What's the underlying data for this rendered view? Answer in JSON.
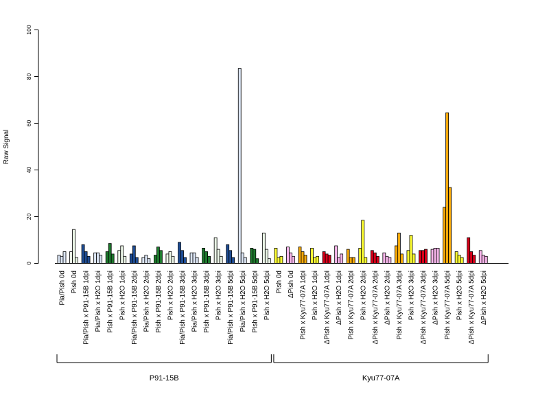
{
  "chart_data": {
    "type": "bar",
    "ylabel": "Raw Signal",
    "ylim": [
      0,
      100
    ],
    "yticks": [
      0,
      20,
      40,
      60,
      80,
      100
    ],
    "categories": [
      "Pia/Pish 0d",
      "Pish 0d",
      "Pia/Pish x P91-15B 1dpi",
      "Pia/Pish x H2O 1dpi",
      "Pish x P91-15B 1dpi",
      "Pish x H2O 1dpi",
      "Pia/Pish x P91-15B 2dpi",
      "Pia/Pish x H2O 2dpi",
      "Pish x P91-15B 2dpi",
      "Pish x H2O 2dpi",
      "Pia/Pish x P91-15B 3dpi",
      "Pia/Pish x H2O 3dpi",
      "Pish x P91-15B 3dpi",
      "Pish x H2O 3dpi",
      "Pia/Pish x P91-15B 5dpi",
      "Pia/Pish x H2O 5dpi",
      "Pish x P91-15B 5dpi",
      "Pish x H2O 5dpi",
      "Pish 0d",
      "ΔPish 0d",
      "Pish x Kyu77-07A 1dpi",
      "Pish x H2O 1dpi",
      "ΔPish x Kyu77-07A 1dpi",
      "ΔPish x H2O 1dpi",
      "Pish x Kyu77-07A 2dpi",
      "Pish x H2O 2dpi",
      "ΔPish x Kyu77-07A 2dpi",
      "ΔPish x H2O 2dpi",
      "Pish x Kyu77-07A 3dpi",
      "Pish x H2O 3dpi",
      "ΔPish x Kyu77-07A 3dpi",
      "ΔPish x H2O 3dpi",
      "Pish x Kyu77-07A 5dpi",
      "Pish x H2O 5dpi",
      "ΔPish x Kyu77-07A 5dpi",
      "ΔPish x H2O 5dpi"
    ],
    "colors": [
      "#dbe5f5",
      "#eaf5e6",
      "#1f4e96",
      "#dbe5f5",
      "#1e7a2e",
      "#eaf5e6",
      "#1f4e96",
      "#dbe5f5",
      "#1e7a2e",
      "#eaf5e6",
      "#1f4e96",
      "#dbe5f5",
      "#1e7a2e",
      "#eaf5e6",
      "#1f4e96",
      "#dbe5f5",
      "#1e7a2e",
      "#eaf5e6",
      "#ffff33",
      "#f7b5ea",
      "#f5a80a",
      "#ffff33",
      "#d8001a",
      "#f7b5ea",
      "#f5a80a",
      "#ffff33",
      "#d8001a",
      "#f7b5ea",
      "#f5a80a",
      "#ffff33",
      "#d8001a",
      "#f7b5ea",
      "#f5a80a",
      "#ffff33",
      "#d8001a",
      "#f7b5ea"
    ],
    "values": [
      [
        3.5,
        3.0,
        5.0
      ],
      [
        5.0,
        14.5,
        2.5
      ],
      [
        8.0,
        5.0,
        3.0
      ],
      [
        4.5,
        4.5,
        3.5
      ],
      [
        5.0,
        8.5,
        4.0
      ],
      [
        5.5,
        7.5,
        3.0
      ],
      [
        4.0,
        7.5,
        2.5
      ],
      [
        2.5,
        3.5,
        2.0
      ],
      [
        3.5,
        7.0,
        5.5
      ],
      [
        4.0,
        5.0,
        3.0
      ],
      [
        9.0,
        5.5,
        2.5
      ],
      [
        4.5,
        4.5,
        2.5
      ],
      [
        6.5,
        5.0,
        3.0
      ],
      [
        11.0,
        6.0,
        3.0
      ],
      [
        8.0,
        5.5,
        2.5
      ],
      [
        83.5,
        4.5,
        2.5
      ],
      [
        6.5,
        6.0,
        2.0
      ],
      [
        13.0,
        6.0,
        2.0
      ],
      [
        6.5,
        2.5,
        3.0
      ],
      [
        7.0,
        4.5,
        3.0
      ],
      [
        7.0,
        5.0,
        3.5
      ],
      [
        6.5,
        2.5,
        3.0
      ],
      [
        5.0,
        4.0,
        3.5
      ],
      [
        7.5,
        2.5,
        4.0
      ],
      [
        6.0,
        2.5,
        2.5
      ],
      [
        6.5,
        18.5,
        2.5
      ],
      [
        5.5,
        4.5,
        3.0
      ],
      [
        4.5,
        3.0,
        2.5
      ],
      [
        7.5,
        13.0,
        4.0
      ],
      [
        5.5,
        12.0,
        4.0
      ],
      [
        5.5,
        5.5,
        6.0
      ],
      [
        6.0,
        6.5,
        6.5
      ],
      [
        24.0,
        64.5,
        32.5
      ],
      [
        5.0,
        3.5,
        2.5
      ],
      [
        11.0,
        5.0,
        3.5
      ],
      [
        5.5,
        3.5,
        3.0
      ]
    ],
    "groups": [
      {
        "label": "P91-15B",
        "first": 0,
        "last": 17
      },
      {
        "label": "Kyu77-07A",
        "first": 18,
        "last": 35
      }
    ],
    "grid": false,
    "legend": "none"
  }
}
